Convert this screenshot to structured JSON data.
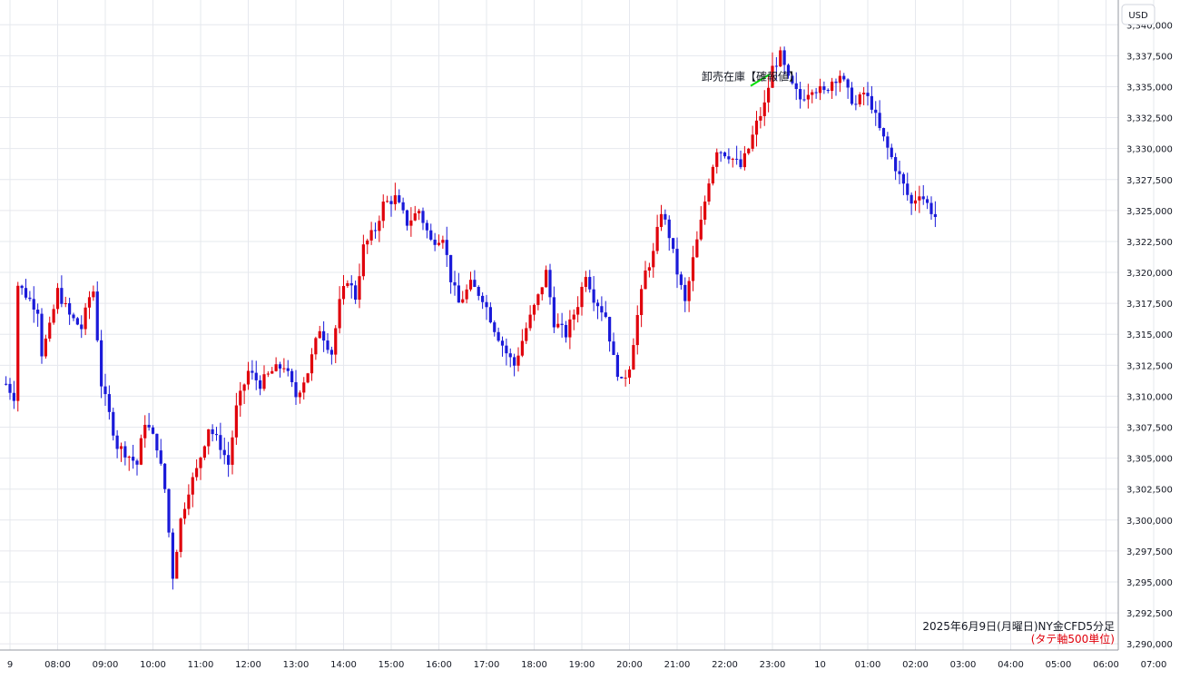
{
  "chart_data": {
    "type": "candlestick",
    "currency_label": "USD",
    "annotation": {
      "label": "卸売在庫【確報値】",
      "time": "23:00"
    },
    "caption": "2025年6月9日(月曜日)NY金CFD5分足",
    "subcaption": "(タテ軸500単位)",
    "ylim": [
      3289500,
      3342000
    ],
    "y_ticks": [
      3290000,
      3292500,
      3295000,
      3297500,
      3300000,
      3302500,
      3305000,
      3307500,
      3310000,
      3312500,
      3315000,
      3317500,
      3320000,
      3322500,
      3325000,
      3327500,
      3330000,
      3332500,
      3335000,
      3337500,
      3340000
    ],
    "y_tick_labels": [
      "3,290,000",
      "3,292,500",
      "3,295,000",
      "3,297,500",
      "3,300,000",
      "3,302,500",
      "3,305,000",
      "3,307,500",
      "3,310,000",
      "3,312,500",
      "3,315,000",
      "3,317,500",
      "3,320,000",
      "3,322,500",
      "3,325,000",
      "3,327,500",
      "3,330,000",
      "3,332,500",
      "3,335,000",
      "3,337,500",
      "3,340,000"
    ],
    "x_ticks": [
      "9",
      "08:00",
      "09:00",
      "10:00",
      "11:00",
      "12:00",
      "13:00",
      "14:00",
      "15:00",
      "16:00",
      "17:00",
      "18:00",
      "19:00",
      "20:00",
      "21:00",
      "22:00",
      "23:00",
      "10",
      "01:00",
      "02:00",
      "03:00",
      "04:00",
      "05:00",
      "06:00",
      "07:00"
    ],
    "up_color": "#e0000b",
    "down_color": "#1a1ad9",
    "grid": true,
    "series_path": [
      [
        0,
        3311000
      ],
      [
        2,
        3310000
      ],
      [
        3,
        3319000
      ],
      [
        8,
        3317000
      ],
      [
        9,
        3313500
      ],
      [
        11,
        3315500
      ],
      [
        13,
        3318500
      ],
      [
        16,
        3316500
      ],
      [
        19,
        3315500
      ],
      [
        21,
        3318000
      ],
      [
        22,
        3318500
      ],
      [
        24,
        3311000
      ],
      [
        26,
        3308500
      ],
      [
        28,
        3306000
      ],
      [
        30,
        3305500
      ],
      [
        33,
        3304500
      ],
      [
        35,
        3308000
      ],
      [
        38,
        3306000
      ],
      [
        40,
        3302500
      ],
      [
        42,
        3295500
      ],
      [
        44,
        3300000
      ],
      [
        46,
        3302500
      ],
      [
        48,
        3304000
      ],
      [
        51,
        3307500
      ],
      [
        54,
        3306000
      ],
      [
        56,
        3304500
      ],
      [
        58,
        3309000
      ],
      [
        61,
        3312000
      ],
      [
        64,
        3311000
      ],
      [
        67,
        3312000
      ],
      [
        70,
        3312500
      ],
      [
        73,
        3310000
      ],
      [
        76,
        3312000
      ],
      [
        79,
        3315500
      ],
      [
        82,
        3313500
      ],
      [
        84,
        3317500
      ],
      [
        86,
        3319500
      ],
      [
        88,
        3318000
      ],
      [
        90,
        3322000
      ],
      [
        93,
        3323500
      ],
      [
        95,
        3325500
      ],
      [
        98,
        3326000
      ],
      [
        101,
        3324000
      ],
      [
        104,
        3325000
      ],
      [
        107,
        3322500
      ],
      [
        110,
        3323000
      ],
      [
        112,
        3319500
      ],
      [
        114,
        3317500
      ],
      [
        117,
        3319000
      ],
      [
        120,
        3318000
      ],
      [
        123,
        3315500
      ],
      [
        126,
        3313500
      ],
      [
        128,
        3312500
      ],
      [
        131,
        3315500
      ],
      [
        134,
        3318000
      ],
      [
        136,
        3320000
      ],
      [
        138,
        3316000
      ],
      [
        141,
        3315000
      ],
      [
        144,
        3317500
      ],
      [
        146,
        3320000
      ],
      [
        148,
        3318000
      ],
      [
        151,
        3316500
      ],
      [
        153,
        3313000
      ],
      [
        155,
        3311000
      ],
      [
        157,
        3312500
      ],
      [
        159,
        3316500
      ],
      [
        161,
        3320000
      ],
      [
        163,
        3321500
      ],
      [
        165,
        3325000
      ],
      [
        167,
        3323000
      ],
      [
        169,
        3320000
      ],
      [
        171,
        3317500
      ],
      [
        173,
        3321000
      ],
      [
        175,
        3324000
      ],
      [
        177,
        3327500
      ],
      [
        179,
        3330000
      ],
      [
        182,
        3329500
      ],
      [
        185,
        3328500
      ],
      [
        187,
        3330000
      ],
      [
        189,
        3332000
      ],
      [
        191,
        3333500
      ],
      [
        193,
        3336500
      ],
      [
        195,
        3337500
      ],
      [
        197,
        3335500
      ],
      [
        200,
        3334000
      ],
      [
        203,
        3335000
      ],
      [
        206,
        3334500
      ],
      [
        208,
        3335500
      ],
      [
        210,
        3336000
      ],
      [
        212,
        3334500
      ],
      [
        214,
        3333500
      ],
      [
        216,
        3334500
      ],
      [
        218,
        3333500
      ],
      [
        220,
        3331500
      ],
      [
        222,
        3330000
      ],
      [
        224,
        3328500
      ],
      [
        226,
        3327000
      ],
      [
        228,
        3325500
      ],
      [
        230,
        3326500
      ],
      [
        232,
        3325500
      ],
      [
        234,
        3324500
      ]
    ]
  }
}
